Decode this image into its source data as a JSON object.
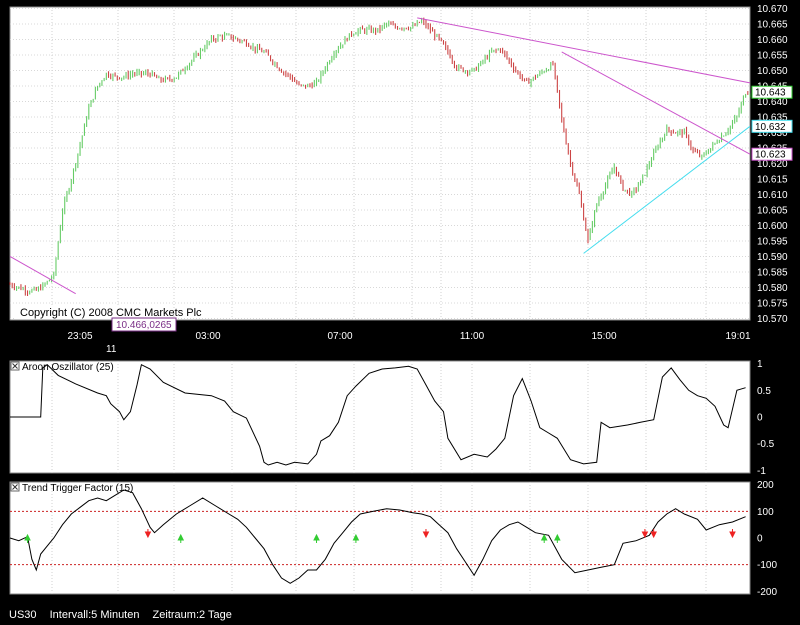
{
  "status_bar": {
    "symbol": "US30",
    "interval": "Intervall:5 Minuten",
    "period": "Zeitraum:2 Tage"
  },
  "colors": {
    "up_candle": "#66cc66",
    "down_candle": "#cc4444",
    "purple_trend": "#cc55cc",
    "cyan_trend": "#44ddee",
    "price_tag": "#33cc33",
    "threshold_line": "#cc2222"
  },
  "chart_data": [
    {
      "type": "candlestick",
      "title": "",
      "copyright": "Copyright (C) 2008 CMC Markets Plc",
      "cursor_readout": "10.466,0265",
      "y_ticks": [
        "10.670",
        "10.665",
        "10.660",
        "10.655",
        "10.650",
        "10.645",
        "10.640",
        "10.635",
        "10.630",
        "10.625",
        "10.620",
        "10.615",
        "10.610",
        "10.605",
        "10.600",
        "10.595",
        "10.590",
        "10.585",
        "10.580",
        "10.575",
        "10.570"
      ],
      "ylim": [
        10.5695,
        10.6705
      ],
      "time_ticks": [
        "23:05",
        "03:00",
        "07:00",
        "11:00",
        "15:00",
        "19:01"
      ],
      "date_label": "11",
      "grid": true,
      "price_points": [
        [
          0,
          10.581
        ],
        [
          8,
          10.579
        ],
        [
          12,
          10.579
        ],
        [
          16,
          10.581
        ],
        [
          20,
          10.584
        ],
        [
          24,
          10.605
        ],
        [
          28,
          10.615
        ],
        [
          32,
          10.626
        ],
        [
          36,
          10.638
        ],
        [
          40,
          10.645
        ],
        [
          44,
          10.649
        ],
        [
          48,
          10.648
        ],
        [
          52,
          10.648
        ],
        [
          56,
          10.649
        ],
        [
          60,
          10.649
        ],
        [
          64,
          10.649
        ],
        [
          68,
          10.647
        ],
        [
          72,
          10.647
        ],
        [
          76,
          10.648
        ],
        [
          80,
          10.651
        ],
        [
          84,
          10.654
        ],
        [
          88,
          10.657
        ],
        [
          92,
          10.66
        ],
        [
          96,
          10.661
        ],
        [
          100,
          10.661
        ],
        [
          104,
          10.66
        ],
        [
          108,
          10.659
        ],
        [
          112,
          10.657
        ],
        [
          116,
          10.656
        ],
        [
          120,
          10.653
        ],
        [
          124,
          10.65
        ],
        [
          128,
          10.648
        ],
        [
          132,
          10.645
        ],
        [
          136,
          10.645
        ],
        [
          140,
          10.646
        ],
        [
          144,
          10.651
        ],
        [
          148,
          10.656
        ],
        [
          152,
          10.659
        ],
        [
          156,
          10.662
        ],
        [
          160,
          10.663
        ],
        [
          164,
          10.663
        ],
        [
          168,
          10.663
        ],
        [
          172,
          10.665
        ],
        [
          176,
          10.664
        ],
        [
          180,
          10.664
        ],
        [
          184,
          10.664
        ],
        [
          188,
          10.666
        ],
        [
          192,
          10.663
        ],
        [
          196,
          10.66
        ],
        [
          200,
          10.656
        ],
        [
          204,
          10.651
        ],
        [
          208,
          10.65
        ],
        [
          212,
          10.65
        ],
        [
          216,
          10.653
        ],
        [
          220,
          10.656
        ],
        [
          224,
          10.657
        ],
        [
          228,
          10.653
        ],
        [
          232,
          10.649
        ],
        [
          236,
          10.646
        ],
        [
          240,
          10.648
        ],
        [
          244,
          10.65
        ],
        [
          248,
          10.652
        ],
        [
          252,
          10.634
        ],
        [
          256,
          10.62
        ],
        [
          260,
          10.61
        ],
        [
          264,
          10.595
        ],
        [
          268,
          10.607
        ],
        [
          272,
          10.613
        ],
        [
          276,
          10.619
        ],
        [
          280,
          10.612
        ],
        [
          284,
          10.61
        ],
        [
          288,
          10.614
        ],
        [
          292,
          10.62
        ],
        [
          296,
          10.626
        ],
        [
          300,
          10.631
        ],
        [
          304,
          10.63
        ],
        [
          308,
          10.63
        ],
        [
          312,
          10.624
        ],
        [
          316,
          10.622
        ],
        [
          320,
          10.625
        ],
        [
          324,
          10.628
        ],
        [
          328,
          10.631
        ],
        [
          332,
          10.635
        ],
        [
          336,
          10.643
        ]
      ],
      "trendlines": [
        {
          "color": "#cc55cc",
          "points": [
            [
              186,
              10.667
            ],
            [
              338,
              10.646
            ]
          ]
        },
        {
          "color": "#cc55cc",
          "points": [
            [
              252,
              10.656
            ],
            [
              338,
              10.623
            ]
          ]
        },
        {
          "color": "#44ddee",
          "points": [
            [
              262,
              10.591
            ],
            [
              338,
              10.632
            ]
          ]
        },
        {
          "color": "#cc55cc",
          "points": [
            [
              0,
              10.59
            ],
            [
              30,
              10.578
            ]
          ]
        }
      ],
      "price_tags": [
        {
          "text": "10.643",
          "value": 10.643,
          "color": "#33cc33"
        },
        {
          "text": "10.632",
          "value": 10.632,
          "color": "#44ddee"
        },
        {
          "text": "10.623",
          "value": 10.623,
          "color": "#cc55cc"
        }
      ]
    },
    {
      "type": "line",
      "title": "Aroon Oszillator (25)",
      "y_ticks": [
        "1",
        "0.5",
        "0",
        "-0.5",
        "-1"
      ],
      "ylim": [
        -1.05,
        1.05
      ],
      "points": [
        [
          0,
          0.0
        ],
        [
          14,
          0.0
        ],
        [
          15,
          0.92
        ],
        [
          17,
          0.98
        ],
        [
          22,
          0.78
        ],
        [
          30,
          0.62
        ],
        [
          40,
          0.45
        ],
        [
          44,
          0.4
        ],
        [
          46,
          0.25
        ],
        [
          50,
          0.1
        ],
        [
          52,
          -0.05
        ],
        [
          55,
          0.1
        ],
        [
          58,
          0.6
        ],
        [
          60,
          0.98
        ],
        [
          64,
          0.9
        ],
        [
          70,
          0.65
        ],
        [
          80,
          0.45
        ],
        [
          92,
          0.4
        ],
        [
          98,
          0.3
        ],
        [
          102,
          0.1
        ],
        [
          108,
          -0.02
        ],
        [
          114,
          -0.55
        ],
        [
          116,
          -0.85
        ],
        [
          118,
          -0.9
        ],
        [
          122,
          -0.85
        ],
        [
          126,
          -0.9
        ],
        [
          130,
          -0.85
        ],
        [
          136,
          -0.88
        ],
        [
          140,
          -0.7
        ],
        [
          142,
          -0.45
        ],
        [
          146,
          -0.35
        ],
        [
          150,
          -0.1
        ],
        [
          154,
          0.4
        ],
        [
          158,
          0.58
        ],
        [
          164,
          0.82
        ],
        [
          170,
          0.9
        ],
        [
          176,
          0.92
        ],
        [
          182,
          0.95
        ],
        [
          186,
          0.9
        ],
        [
          190,
          0.6
        ],
        [
          194,
          0.3
        ],
        [
          198,
          0.1
        ],
        [
          200,
          -0.4
        ],
        [
          206,
          -0.8
        ],
        [
          212,
          -0.7
        ],
        [
          218,
          -0.75
        ],
        [
          222,
          -0.6
        ],
        [
          226,
          -0.4
        ],
        [
          230,
          0.4
        ],
        [
          234,
          0.72
        ],
        [
          238,
          0.3
        ],
        [
          242,
          -0.2
        ],
        [
          246,
          -0.3
        ],
        [
          250,
          -0.4
        ],
        [
          256,
          -0.8
        ],
        [
          262,
          -0.88
        ],
        [
          268,
          -0.85
        ],
        [
          270,
          -0.1
        ],
        [
          274,
          -0.2
        ],
        [
          282,
          -0.15
        ],
        [
          288,
          -0.1
        ],
        [
          294,
          -0.05
        ],
        [
          298,
          0.75
        ],
        [
          302,
          0.92
        ],
        [
          306,
          0.7
        ],
        [
          310,
          0.5
        ],
        [
          314,
          0.4
        ],
        [
          318,
          0.35
        ],
        [
          322,
          0.2
        ],
        [
          326,
          -0.15
        ],
        [
          328,
          -0.2
        ],
        [
          332,
          0.5
        ],
        [
          336,
          0.55
        ]
      ]
    },
    {
      "type": "line",
      "title": "Trend Trigger Factor (15)",
      "y_ticks": [
        "200",
        "100",
        "0",
        "-100",
        "-200"
      ],
      "ylim": [
        -210,
        210
      ],
      "thresholds": [
        100,
        -100
      ],
      "points": [
        [
          0,
          0
        ],
        [
          4,
          -10
        ],
        [
          8,
          5
        ],
        [
          10,
          -80
        ],
        [
          12,
          -120
        ],
        [
          14,
          -60
        ],
        [
          18,
          -20
        ],
        [
          20,
          0
        ],
        [
          24,
          50
        ],
        [
          28,
          90
        ],
        [
          32,
          115
        ],
        [
          36,
          140
        ],
        [
          40,
          150
        ],
        [
          44,
          140
        ],
        [
          48,
          160
        ],
        [
          52,
          180
        ],
        [
          56,
          170
        ],
        [
          60,
          110
        ],
        [
          64,
          40
        ],
        [
          66,
          20
        ],
        [
          70,
          50
        ],
        [
          76,
          90
        ],
        [
          82,
          120
        ],
        [
          88,
          150
        ],
        [
          94,
          120
        ],
        [
          100,
          90
        ],
        [
          104,
          70
        ],
        [
          108,
          40
        ],
        [
          112,
          0
        ],
        [
          116,
          -40
        ],
        [
          120,
          -100
        ],
        [
          124,
          -150
        ],
        [
          128,
          -170
        ],
        [
          132,
          -150
        ],
        [
          136,
          -120
        ],
        [
          140,
          -120
        ],
        [
          144,
          -80
        ],
        [
          148,
          -20
        ],
        [
          152,
          20
        ],
        [
          156,
          60
        ],
        [
          160,
          90
        ],
        [
          166,
          100
        ],
        [
          172,
          110
        ],
        [
          178,
          105
        ],
        [
          184,
          95
        ],
        [
          188,
          90
        ],
        [
          192,
          80
        ],
        [
          196,
          50
        ],
        [
          200,
          20
        ],
        [
          204,
          -40
        ],
        [
          208,
          -90
        ],
        [
          212,
          -140
        ],
        [
          216,
          -80
        ],
        [
          220,
          -10
        ],
        [
          224,
          30
        ],
        [
          228,
          50
        ],
        [
          232,
          60
        ],
        [
          236,
          40
        ],
        [
          240,
          20
        ],
        [
          246,
          10
        ],
        [
          252,
          -80
        ],
        [
          258,
          -130
        ],
        [
          264,
          -120
        ],
        [
          270,
          -110
        ],
        [
          276,
          -100
        ],
        [
          280,
          -20
        ],
        [
          286,
          -10
        ],
        [
          292,
          10
        ],
        [
          296,
          60
        ],
        [
          300,
          90
        ],
        [
          304,
          110
        ],
        [
          308,
          90
        ],
        [
          314,
          70
        ],
        [
          318,
          30
        ],
        [
          324,
          50
        ],
        [
          330,
          60
        ],
        [
          336,
          80
        ]
      ],
      "signals": [
        {
          "x": 8,
          "kind": "up",
          "color": "#33cc33"
        },
        {
          "x": 63,
          "kind": "down",
          "color": "#ee2222"
        },
        {
          "x": 78,
          "kind": "up",
          "color": "#33cc33"
        },
        {
          "x": 140,
          "kind": "up",
          "color": "#33cc33"
        },
        {
          "x": 158,
          "kind": "up",
          "color": "#33cc33"
        },
        {
          "x": 190,
          "kind": "down",
          "color": "#ee2222"
        },
        {
          "x": 244,
          "kind": "up",
          "color": "#33cc33"
        },
        {
          "x": 250,
          "kind": "up",
          "color": "#33cc33"
        },
        {
          "x": 290,
          "kind": "down",
          "color": "#ee2222"
        },
        {
          "x": 294,
          "kind": "down",
          "color": "#ee2222"
        },
        {
          "x": 330,
          "kind": "down",
          "color": "#ee2222"
        }
      ]
    }
  ]
}
